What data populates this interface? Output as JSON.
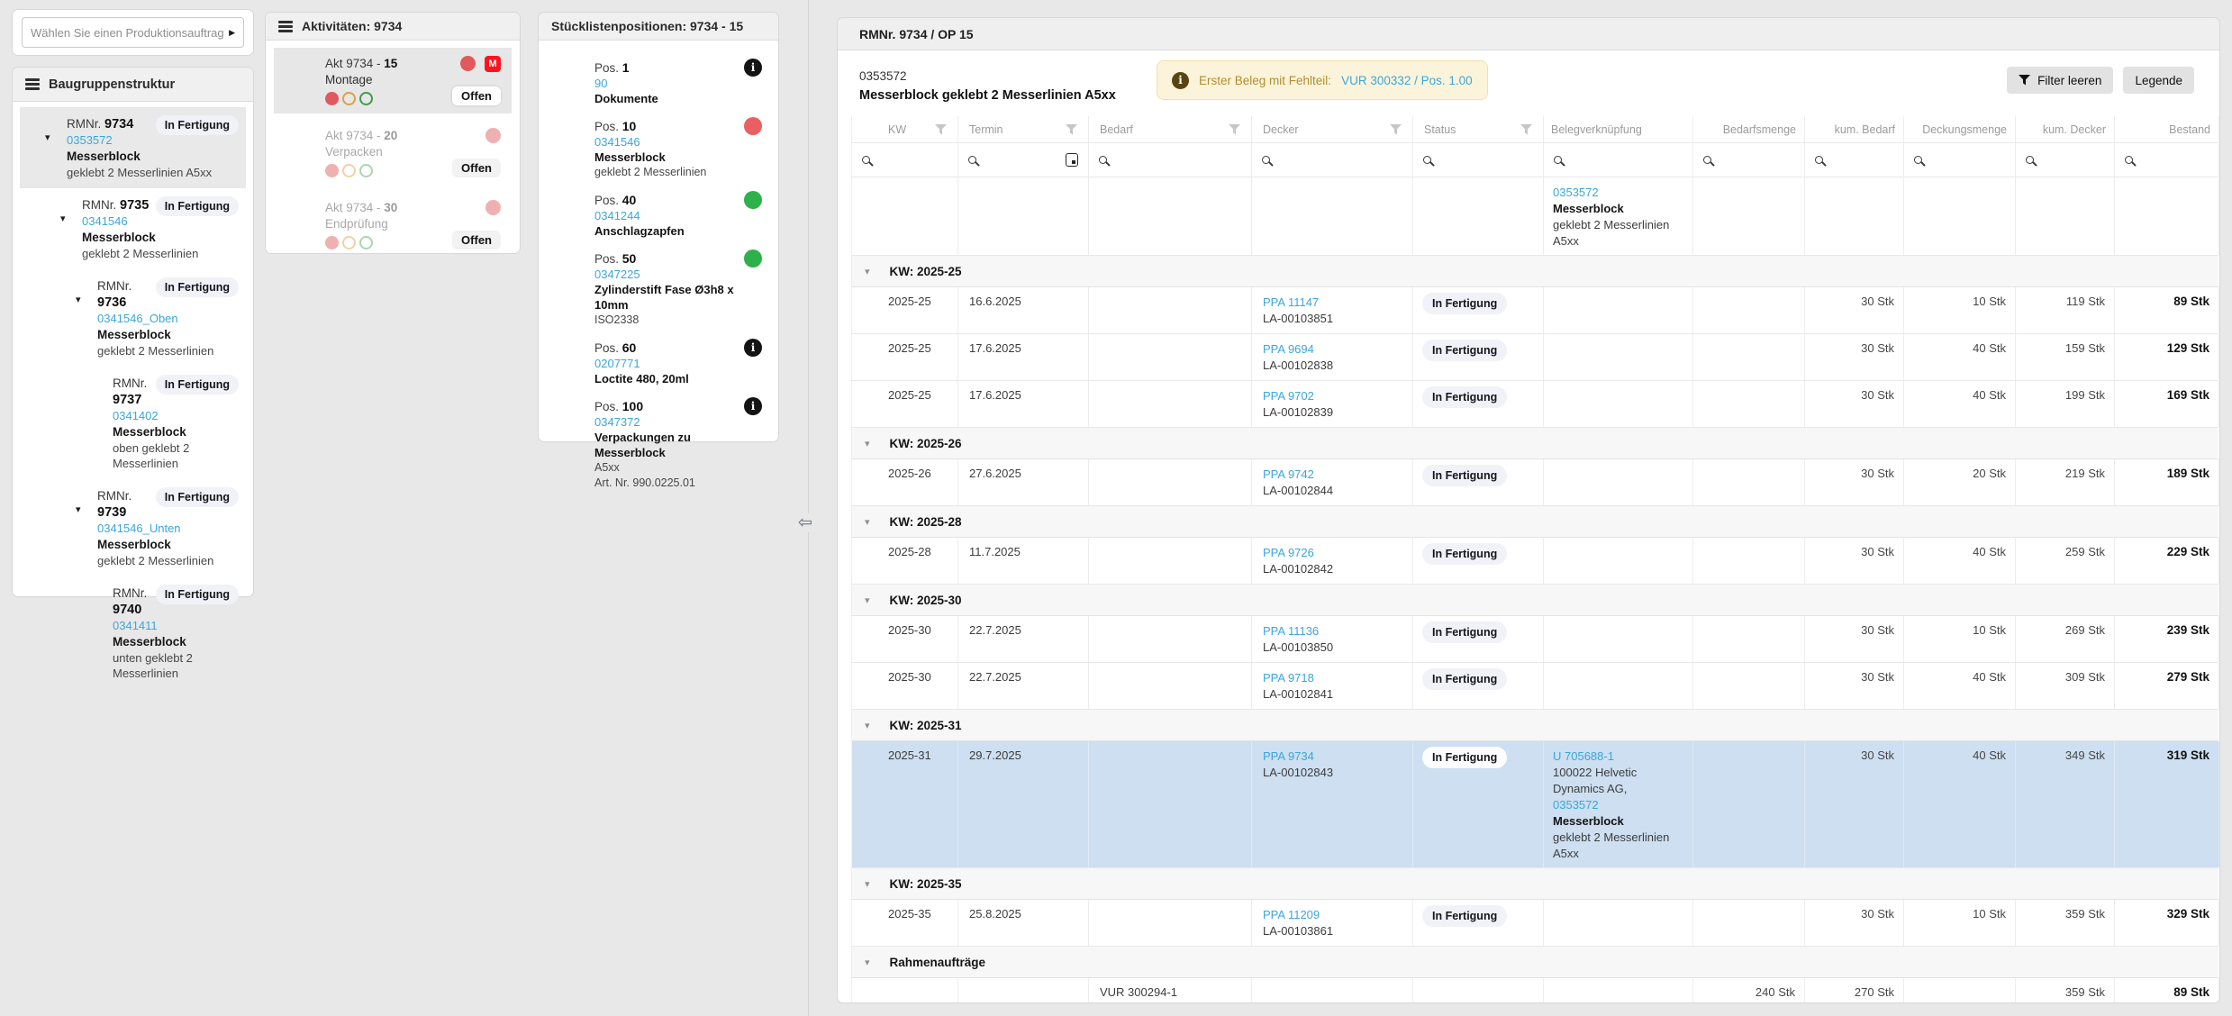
{
  "search": {
    "placeholder": "Wählen Sie einen Produktionsauftrag"
  },
  "sidebar": {
    "title": "Baugruppenstruktur",
    "rm_prefix": "RMNr.",
    "items": [
      {
        "no": "9734",
        "status": "In Fertigung",
        "article": "0353572",
        "name": "Messerblock",
        "desc": "geklebt 2 Messerlinien A5xx",
        "level": 0,
        "expandable": true,
        "selected": true
      },
      {
        "no": "9735",
        "status": "In Fertigung",
        "article": "0341546",
        "name": "Messerblock",
        "desc": "geklebt 2 Messerlinien",
        "level": 1,
        "expandable": true
      },
      {
        "no": "9736",
        "status": "In Fertigung",
        "article": "0341546_Oben",
        "name": "Messerblock",
        "desc": "geklebt 2 Messerlinien",
        "level": 2,
        "expandable": true
      },
      {
        "no": "9737",
        "status": "In Fertigung",
        "article": "0341402",
        "name": "Messerblock",
        "desc": "oben geklebt 2 Messerlinien",
        "level": 3
      },
      {
        "no": "9739",
        "status": "In Fertigung",
        "article": "0341546_Unten",
        "name": "Messerblock",
        "desc": "geklebt 2 Messerlinien",
        "level": 2,
        "expandable": true
      },
      {
        "no": "9740",
        "status": "In Fertigung",
        "article": "0341411",
        "name": "Messerblock",
        "desc": "unten geklebt 2 Messerlinien",
        "level": 3
      }
    ]
  },
  "activities": {
    "title": "Aktivitäten: 9734",
    "items": [
      {
        "label": "Akt 9734 -",
        "no": "15",
        "name": "Montage",
        "status": "Offen",
        "m_badge": "M",
        "selected": true
      },
      {
        "label": "Akt 9734 -",
        "no": "20",
        "name": "Verpacken",
        "status": "Offen"
      },
      {
        "label": "Akt 9734 -",
        "no": "30",
        "name": "Endprüfung",
        "status": "Offen"
      }
    ]
  },
  "bom": {
    "title": "Stücklistenpositionen: 9734 - 15",
    "pos_prefix": "Pos.",
    "items": [
      {
        "no": "1",
        "article": "90",
        "name": "Dokumente",
        "icon": "info"
      },
      {
        "no": "10",
        "article": "0341546",
        "name": "Messerblock",
        "descs": [
          "geklebt 2 Messerlinien"
        ],
        "icon": "red"
      },
      {
        "no": "40",
        "article": "0341244",
        "name": "Anschlagzapfen",
        "descs": [],
        "icon": "green"
      },
      {
        "no": "50",
        "article": "0347225",
        "name": "Zylinderstift Fase Ø3h8 x 10mm",
        "descs": [
          "ISO2338"
        ],
        "icon": "green"
      },
      {
        "no": "60",
        "article": "0207771",
        "name": "Loctite 480, 20ml",
        "descs": [],
        "icon": "info"
      },
      {
        "no": "100",
        "article": "0347372",
        "name": "Verpackungen zu Messerblock",
        "descs": [
          "A5xx",
          "Art. Nr. 990.0225.01"
        ],
        "icon": "info"
      }
    ]
  },
  "main": {
    "title": "RMNr. 9734 / OP 15",
    "article": "0353572",
    "article_name": "Messerblock geklebt 2 Messerlinien A5xx",
    "banner": {
      "text": "Erster Beleg mit Fehlteil:",
      "link": "VUR 300332 / Pos. 1.00"
    },
    "buttons": {
      "clear_filter": "Filter leeren",
      "legend": "Legende"
    },
    "table": {
      "columns": [
        "KW",
        "Termin",
        "Bedarf",
        "Decker",
        "Status",
        "Belegverknüpfung",
        "Bedarfsmenge",
        "kum. Bedarf",
        "Deckungsmenge",
        "kum. Decker",
        "Bestand"
      ],
      "rows": [
        {
          "type": "info",
          "beleg": [
            {
              "t": "0353572",
              "s": "lnk"
            },
            {
              "t": "Messerblock",
              "s": "bld"
            },
            {
              "t": "geklebt 2 Messerlinien"
            },
            {
              "t": "A5xx"
            }
          ]
        },
        {
          "type": "group",
          "label": "KW: 2025-25"
        },
        {
          "type": "data",
          "kw": "2025-25",
          "termin": "16.6.2025",
          "decker": "PPA 11147",
          "decker_sub": "LA-00103851",
          "status": "In Fertigung",
          "kum_bedarf": "30 Stk",
          "deckungsmenge": "10 Stk",
          "kum_decker": "119 Stk",
          "bestand": "89 Stk"
        },
        {
          "type": "data",
          "kw": "2025-25",
          "termin": "17.6.2025",
          "decker": "PPA 9694",
          "decker_sub": "LA-00102838",
          "status": "In Fertigung",
          "kum_bedarf": "30 Stk",
          "deckungsmenge": "40 Stk",
          "kum_decker": "159 Stk",
          "bestand": "129 Stk"
        },
        {
          "type": "data",
          "kw": "2025-25",
          "termin": "17.6.2025",
          "decker": "PPA 9702",
          "decker_sub": "LA-00102839",
          "status": "In Fertigung",
          "kum_bedarf": "30 Stk",
          "deckungsmenge": "40 Stk",
          "kum_decker": "199 Stk",
          "bestand": "169 Stk"
        },
        {
          "type": "group",
          "label": "KW: 2025-26"
        },
        {
          "type": "data",
          "kw": "2025-26",
          "termin": "27.6.2025",
          "decker": "PPA 9742",
          "decker_sub": "LA-00102844",
          "status": "In Fertigung",
          "kum_bedarf": "30 Stk",
          "deckungsmenge": "20 Stk",
          "kum_decker": "219 Stk",
          "bestand": "189 Stk"
        },
        {
          "type": "group",
          "label": "KW: 2025-28"
        },
        {
          "type": "data",
          "kw": "2025-28",
          "termin": "11.7.2025",
          "decker": "PPA 9726",
          "decker_sub": "LA-00102842",
          "status": "In Fertigung",
          "kum_bedarf": "30 Stk",
          "deckungsmenge": "40 Stk",
          "kum_decker": "259 Stk",
          "bestand": "229 Stk"
        },
        {
          "type": "group",
          "label": "KW: 2025-30"
        },
        {
          "type": "data",
          "kw": "2025-30",
          "termin": "22.7.2025",
          "decker": "PPA 11136",
          "decker_sub": "LA-00103850",
          "status": "In Fertigung",
          "kum_bedarf": "30 Stk",
          "deckungsmenge": "10 Stk",
          "kum_decker": "269 Stk",
          "bestand": "239 Stk"
        },
        {
          "type": "data",
          "kw": "2025-30",
          "termin": "22.7.2025",
          "decker": "PPA 9718",
          "decker_sub": "LA-00102841",
          "status": "In Fertigung",
          "kum_bedarf": "30 Stk",
          "deckungsmenge": "40 Stk",
          "kum_decker": "309 Stk",
          "bestand": "279 Stk"
        },
        {
          "type": "group",
          "label": "KW: 2025-31"
        },
        {
          "type": "data",
          "highlight": true,
          "kw": "2025-31",
          "termin": "29.7.2025",
          "decker": "PPA 9734",
          "decker_sub": "LA-00102843",
          "status": "In Fertigung",
          "beleg": [
            {
              "t": "U 705688-1",
              "s": "lnk"
            },
            {
              "t": "100022 Helvetic Dynamics AG,"
            },
            {
              "t": "0353572",
              "s": "lnk"
            },
            {
              "t": "Messerblock",
              "s": "bld"
            },
            {
              "t": "geklebt 2 Messerlinien"
            },
            {
              "t": "A5xx"
            }
          ],
          "kum_bedarf": "30 Stk",
          "deckungsmenge": "40 Stk",
          "kum_decker": "349 Stk",
          "bestand": "319 Stk"
        },
        {
          "type": "group",
          "label": "KW: 2025-35"
        },
        {
          "type": "data",
          "kw": "2025-35",
          "termin": "25.8.2025",
          "decker": "PPA 11209",
          "decker_sub": "LA-00103861",
          "status": "In Fertigung",
          "kum_bedarf": "30 Stk",
          "deckungsmenge": "10 Stk",
          "kum_decker": "359 Stk",
          "bestand": "329 Stk"
        },
        {
          "type": "group",
          "label": "Rahmenaufträge"
        },
        {
          "type": "data",
          "rahmen": true,
          "bedarf": "VUR 300294-1",
          "bedarfsmenge": "240 Stk",
          "kum_bedarf": "270 Stk",
          "kum_decker": "359 Stk",
          "bestand": "89 Stk"
        }
      ]
    }
  }
}
